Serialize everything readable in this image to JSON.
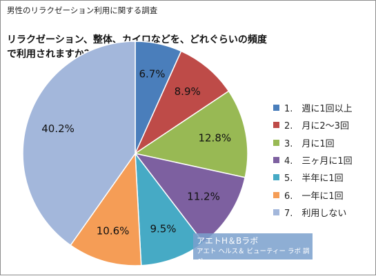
{
  "subtitle": "男性のリラクゼーション利用に関する調査",
  "chart_data": {
    "type": "pie",
    "title": "リラクゼーション、整体、カイロなどを、どれぐらいの頻度で利用されますか？",
    "categories": [
      "1.　週に1回以上",
      "2.　月に2～3回",
      "3.　月に1回",
      "4.　三ヶ月に1回",
      "5.　半年に1回",
      "6.　一年に1回",
      "7.　利用しない"
    ],
    "values": [
      6.7,
      8.9,
      12.8,
      11.2,
      9.5,
      10.6,
      40.2
    ],
    "data_labels": [
      "6.7%",
      "8.9%",
      "12.8%",
      "11.2%",
      "9.5%",
      "10.6%",
      "40.2%"
    ],
    "colors": [
      "#4a7ebb",
      "#be4b48",
      "#98b954",
      "#7d60a0",
      "#46aac5",
      "#f59d56",
      "#a3b7db"
    ],
    "legend_position": "right",
    "start_angle": "12 o'clock",
    "direction": "clockwise"
  },
  "watermark": {
    "line1": "アエトH＆Bラボ",
    "line2": "アエト ヘルス＆ ビューティー ラボ 調べ"
  }
}
